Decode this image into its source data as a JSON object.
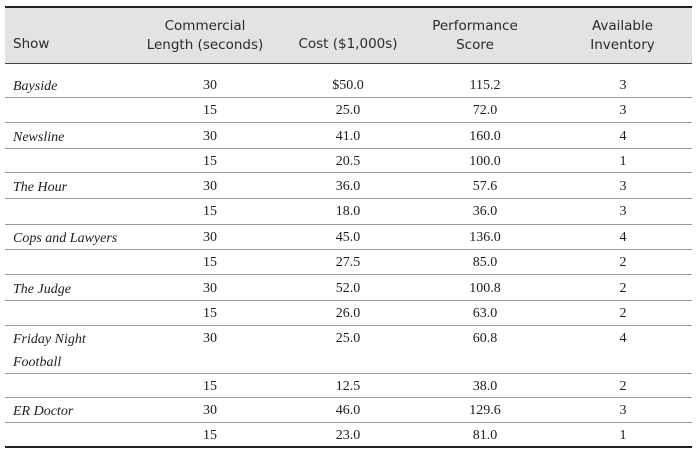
{
  "headers": {
    "show": "Show",
    "length_line1": "Commercial",
    "length_line2": "Length (seconds)",
    "cost": "Cost ($1,000s)",
    "perf_line1": "Performance",
    "perf_line2": "Score",
    "inv_line1": "Available",
    "inv_line2": "Inventory"
  },
  "shows": [
    {
      "name": "Bayside",
      "rows": [
        {
          "length": "30",
          "cost": "$50.0",
          "score": "115.2",
          "inventory": "3"
        },
        {
          "length": "15",
          "cost": "25.0",
          "score": "72.0",
          "inventory": "3"
        }
      ]
    },
    {
      "name": "Newsline",
      "rows": [
        {
          "length": "30",
          "cost": "41.0",
          "score": "160.0",
          "inventory": "4"
        },
        {
          "length": "15",
          "cost": "20.5",
          "score": "100.0",
          "inventory": "1"
        }
      ]
    },
    {
      "name": "The Hour",
      "rows": [
        {
          "length": "30",
          "cost": "36.0",
          "score": "57.6",
          "inventory": "3"
        },
        {
          "length": "15",
          "cost": "18.0",
          "score": "36.0",
          "inventory": "3"
        }
      ]
    },
    {
      "name": "Cops and Lawyers",
      "rows": [
        {
          "length": "30",
          "cost": "45.0",
          "score": "136.0",
          "inventory": "4"
        },
        {
          "length": "15",
          "cost": "27.5",
          "score": "85.0",
          "inventory": "2"
        }
      ]
    },
    {
      "name": "The Judge",
      "rows": [
        {
          "length": "30",
          "cost": "52.0",
          "score": "100.8",
          "inventory": "2"
        },
        {
          "length": "15",
          "cost": "26.0",
          "score": "63.0",
          "inventory": "2"
        }
      ]
    },
    {
      "name": "Friday Night Football",
      "rows": [
        {
          "length": "30",
          "cost": "25.0",
          "score": "60.8",
          "inventory": "4"
        },
        {
          "length": "15",
          "cost": "12.5",
          "score": "38.0",
          "inventory": "2"
        }
      ]
    },
    {
      "name": "ER Doctor",
      "rows": [
        {
          "length": "30",
          "cost": "46.0",
          "score": "129.6",
          "inventory": "3"
        },
        {
          "length": "15",
          "cost": "23.0",
          "score": "81.0",
          "inventory": "1"
        }
      ]
    }
  ]
}
